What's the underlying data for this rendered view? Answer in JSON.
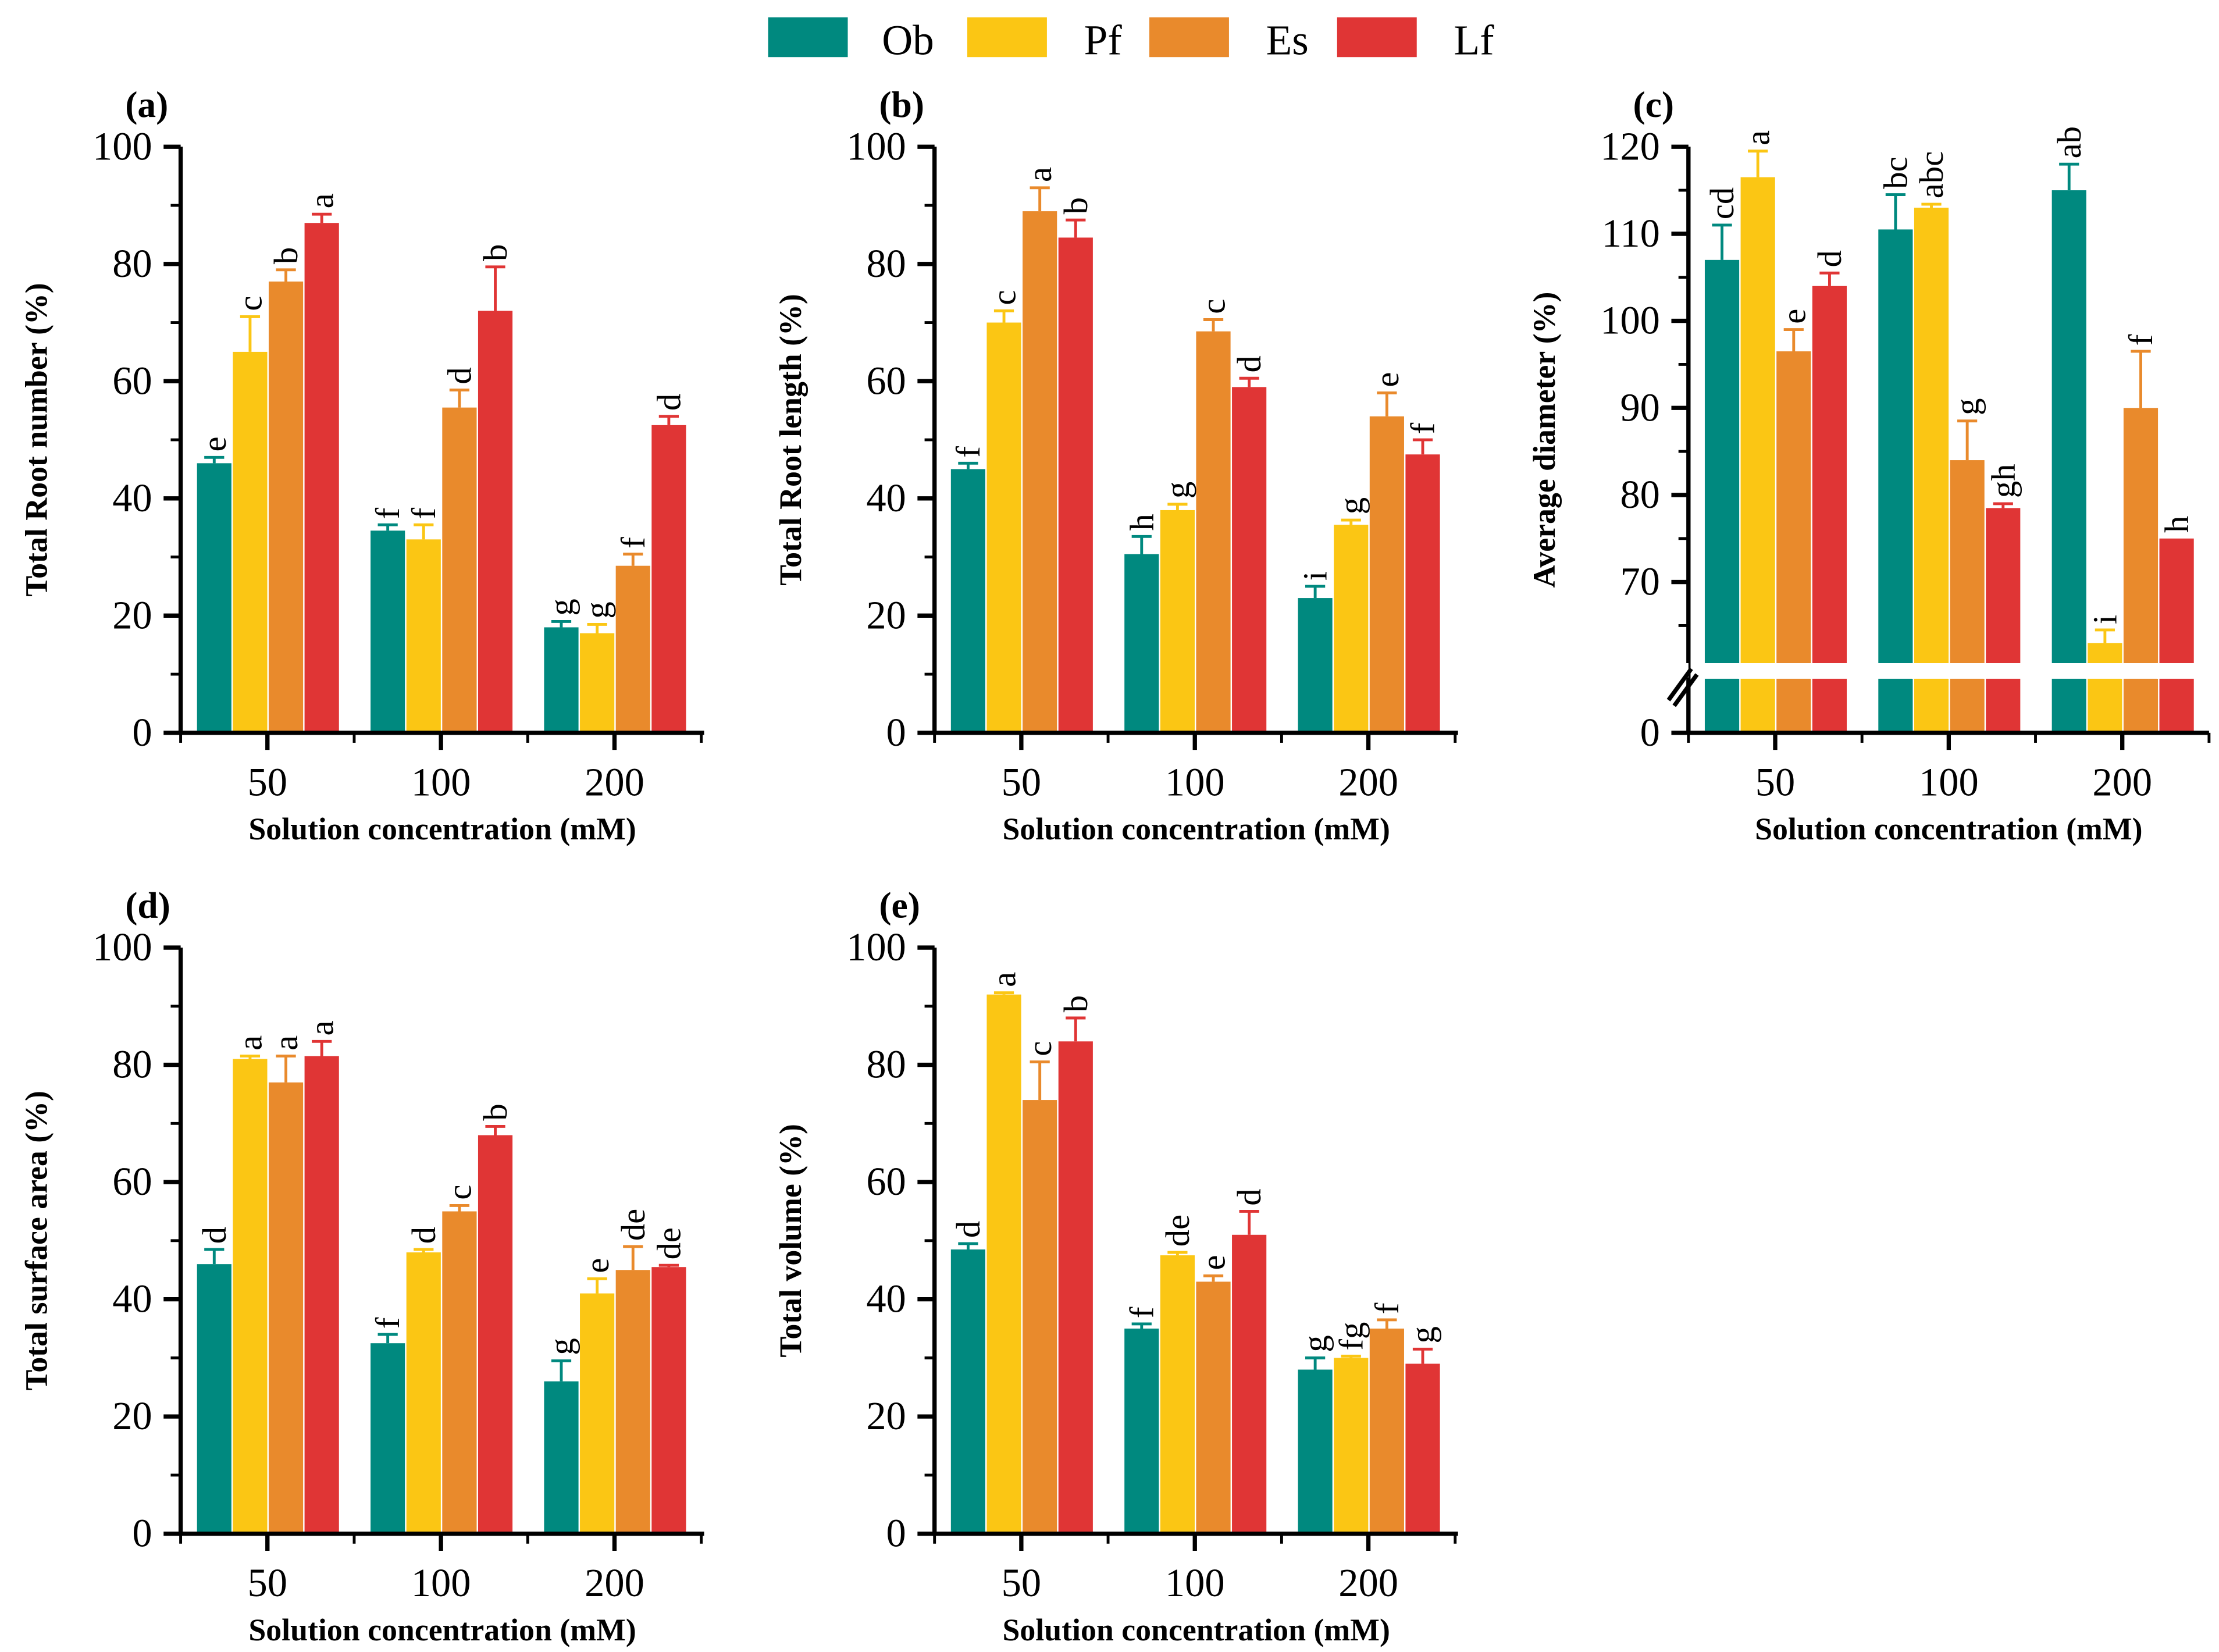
{
  "legend": [
    {
      "name": "Ob",
      "color": "#00897f"
    },
    {
      "name": "Pf",
      "color": "#fbc614"
    },
    {
      "name": "Es",
      "color": "#e98a2c"
    },
    {
      "name": "Lf",
      "color": "#e03535"
    }
  ],
  "chart_data": [
    {
      "type": "bar",
      "panel": "(a)",
      "ylabel": "Total Root number (%)",
      "xlabel": "Solution concentration (mM)",
      "categories": [
        "50",
        "100",
        "200"
      ],
      "ylim": [
        0,
        100
      ],
      "yticks": [
        0,
        20,
        40,
        60,
        80,
        100
      ],
      "series": [
        {
          "name": "Ob",
          "values": [
            46,
            34.5,
            18
          ],
          "errors": [
            1,
            1,
            1
          ],
          "letters": [
            "e",
            "f",
            "g"
          ]
        },
        {
          "name": "Pf",
          "values": [
            65,
            33,
            17
          ],
          "errors": [
            6,
            2.5,
            1.5
          ],
          "letters": [
            "c",
            "f",
            "g"
          ]
        },
        {
          "name": "Es",
          "values": [
            77,
            55.5,
            28.5
          ],
          "errors": [
            2,
            3,
            2
          ],
          "letters": [
            "b",
            "d",
            "f"
          ]
        },
        {
          "name": "Lf",
          "values": [
            87,
            72,
            52.5
          ],
          "errors": [
            1.5,
            7.5,
            1.5
          ],
          "letters": [
            "a",
            "b",
            "d"
          ]
        }
      ]
    },
    {
      "type": "bar",
      "panel": "(b)",
      "ylabel": "Total Root length (%)",
      "xlabel": "Solution concentration (mM)",
      "categories": [
        "50",
        "100",
        "200"
      ],
      "ylim": [
        0,
        100
      ],
      "yticks": [
        0,
        20,
        40,
        60,
        80,
        100
      ],
      "series": [
        {
          "name": "Ob",
          "values": [
            45,
            30.5,
            23
          ],
          "errors": [
            1,
            3,
            2
          ],
          "letters": [
            "f",
            "h",
            "i"
          ]
        },
        {
          "name": "Pf",
          "values": [
            70,
            38,
            35.5
          ],
          "errors": [
            2,
            1,
            0.8
          ],
          "letters": [
            "c",
            "g",
            "g"
          ]
        },
        {
          "name": "Es",
          "values": [
            89,
            68.5,
            54
          ],
          "errors": [
            4,
            2,
            4
          ],
          "letters": [
            "a",
            "c",
            "e"
          ]
        },
        {
          "name": "Lf",
          "values": [
            84.5,
            59,
            47.5
          ],
          "errors": [
            3,
            1.5,
            2.5
          ],
          "letters": [
            "b",
            "d",
            "f"
          ]
        }
      ]
    },
    {
      "type": "bar",
      "panel": "(c)",
      "ylabel": "Average diameter (%)",
      "xlabel": "Solution concentration (mM)",
      "categories": [
        "50",
        "100",
        "200"
      ],
      "ylim": [
        0,
        120
      ],
      "axis_break": [
        0,
        62
      ],
      "yticks": [
        0,
        70,
        80,
        90,
        100,
        110,
        120
      ],
      "series": [
        {
          "name": "Ob",
          "values": [
            107,
            110.5,
            115
          ],
          "errors": [
            4,
            4,
            3
          ],
          "letters": [
            "cd",
            "bc",
            "ab"
          ]
        },
        {
          "name": "Pf",
          "values": [
            116.5,
            113,
            63
          ],
          "errors": [
            3,
            0.4,
            1.5
          ],
          "letters": [
            "a",
            "abc",
            "i"
          ]
        },
        {
          "name": "Es",
          "values": [
            96.5,
            84,
            90
          ],
          "errors": [
            2.5,
            4.5,
            6.5
          ],
          "letters": [
            "e",
            "g",
            "f"
          ]
        },
        {
          "name": "Lf",
          "values": [
            104,
            78.5,
            75
          ],
          "errors": [
            1.5,
            0.5,
            0
          ],
          "letters": [
            "d",
            "gh",
            "h"
          ]
        }
      ]
    },
    {
      "type": "bar",
      "panel": "(d)",
      "ylabel": "Total surface area (%)",
      "xlabel": "Solution concentration (mM)",
      "categories": [
        "50",
        "100",
        "200"
      ],
      "ylim": [
        0,
        100
      ],
      "yticks": [
        0,
        20,
        40,
        60,
        80,
        100
      ],
      "series": [
        {
          "name": "Ob",
          "values": [
            46,
            32.5,
            26
          ],
          "errors": [
            2.5,
            1.5,
            3.5
          ],
          "letters": [
            "d",
            "f",
            "g"
          ]
        },
        {
          "name": "Pf",
          "values": [
            81,
            48,
            41
          ],
          "errors": [
            0.5,
            0.5,
            2.5
          ],
          "letters": [
            "a",
            "d",
            "e"
          ]
        },
        {
          "name": "Es",
          "values": [
            77,
            55,
            45
          ],
          "errors": [
            4.5,
            1,
            4
          ],
          "letters": [
            "a",
            "c",
            "de"
          ]
        },
        {
          "name": "Lf",
          "values": [
            81.5,
            68,
            45.5
          ],
          "errors": [
            2.5,
            1.5,
            0.3
          ],
          "letters": [
            "a",
            "b",
            "de"
          ]
        }
      ]
    },
    {
      "type": "bar",
      "panel": "(e)",
      "ylabel": "Total volume (%)",
      "xlabel": "Solution concentration (mM)",
      "categories": [
        "50",
        "100",
        "200"
      ],
      "ylim": [
        0,
        100
      ],
      "yticks": [
        0,
        20,
        40,
        60,
        80,
        100
      ],
      "series": [
        {
          "name": "Ob",
          "values": [
            48.5,
            35,
            28
          ],
          "errors": [
            1,
            0.8,
            2
          ],
          "letters": [
            "d",
            "f",
            "g"
          ]
        },
        {
          "name": "Pf",
          "values": [
            92,
            47.5,
            30
          ],
          "errors": [
            0.3,
            0.5,
            0.3
          ],
          "letters": [
            "a",
            "de",
            "fg"
          ]
        },
        {
          "name": "Es",
          "values": [
            74,
            43,
            35
          ],
          "errors": [
            6.5,
            1,
            1.5
          ],
          "letters": [
            "c",
            "e",
            "f"
          ]
        },
        {
          "name": "Lf",
          "values": [
            84,
            51,
            29
          ],
          "errors": [
            4,
            4,
            2.5
          ],
          "letters": [
            "b",
            "d",
            "g"
          ]
        }
      ]
    }
  ]
}
